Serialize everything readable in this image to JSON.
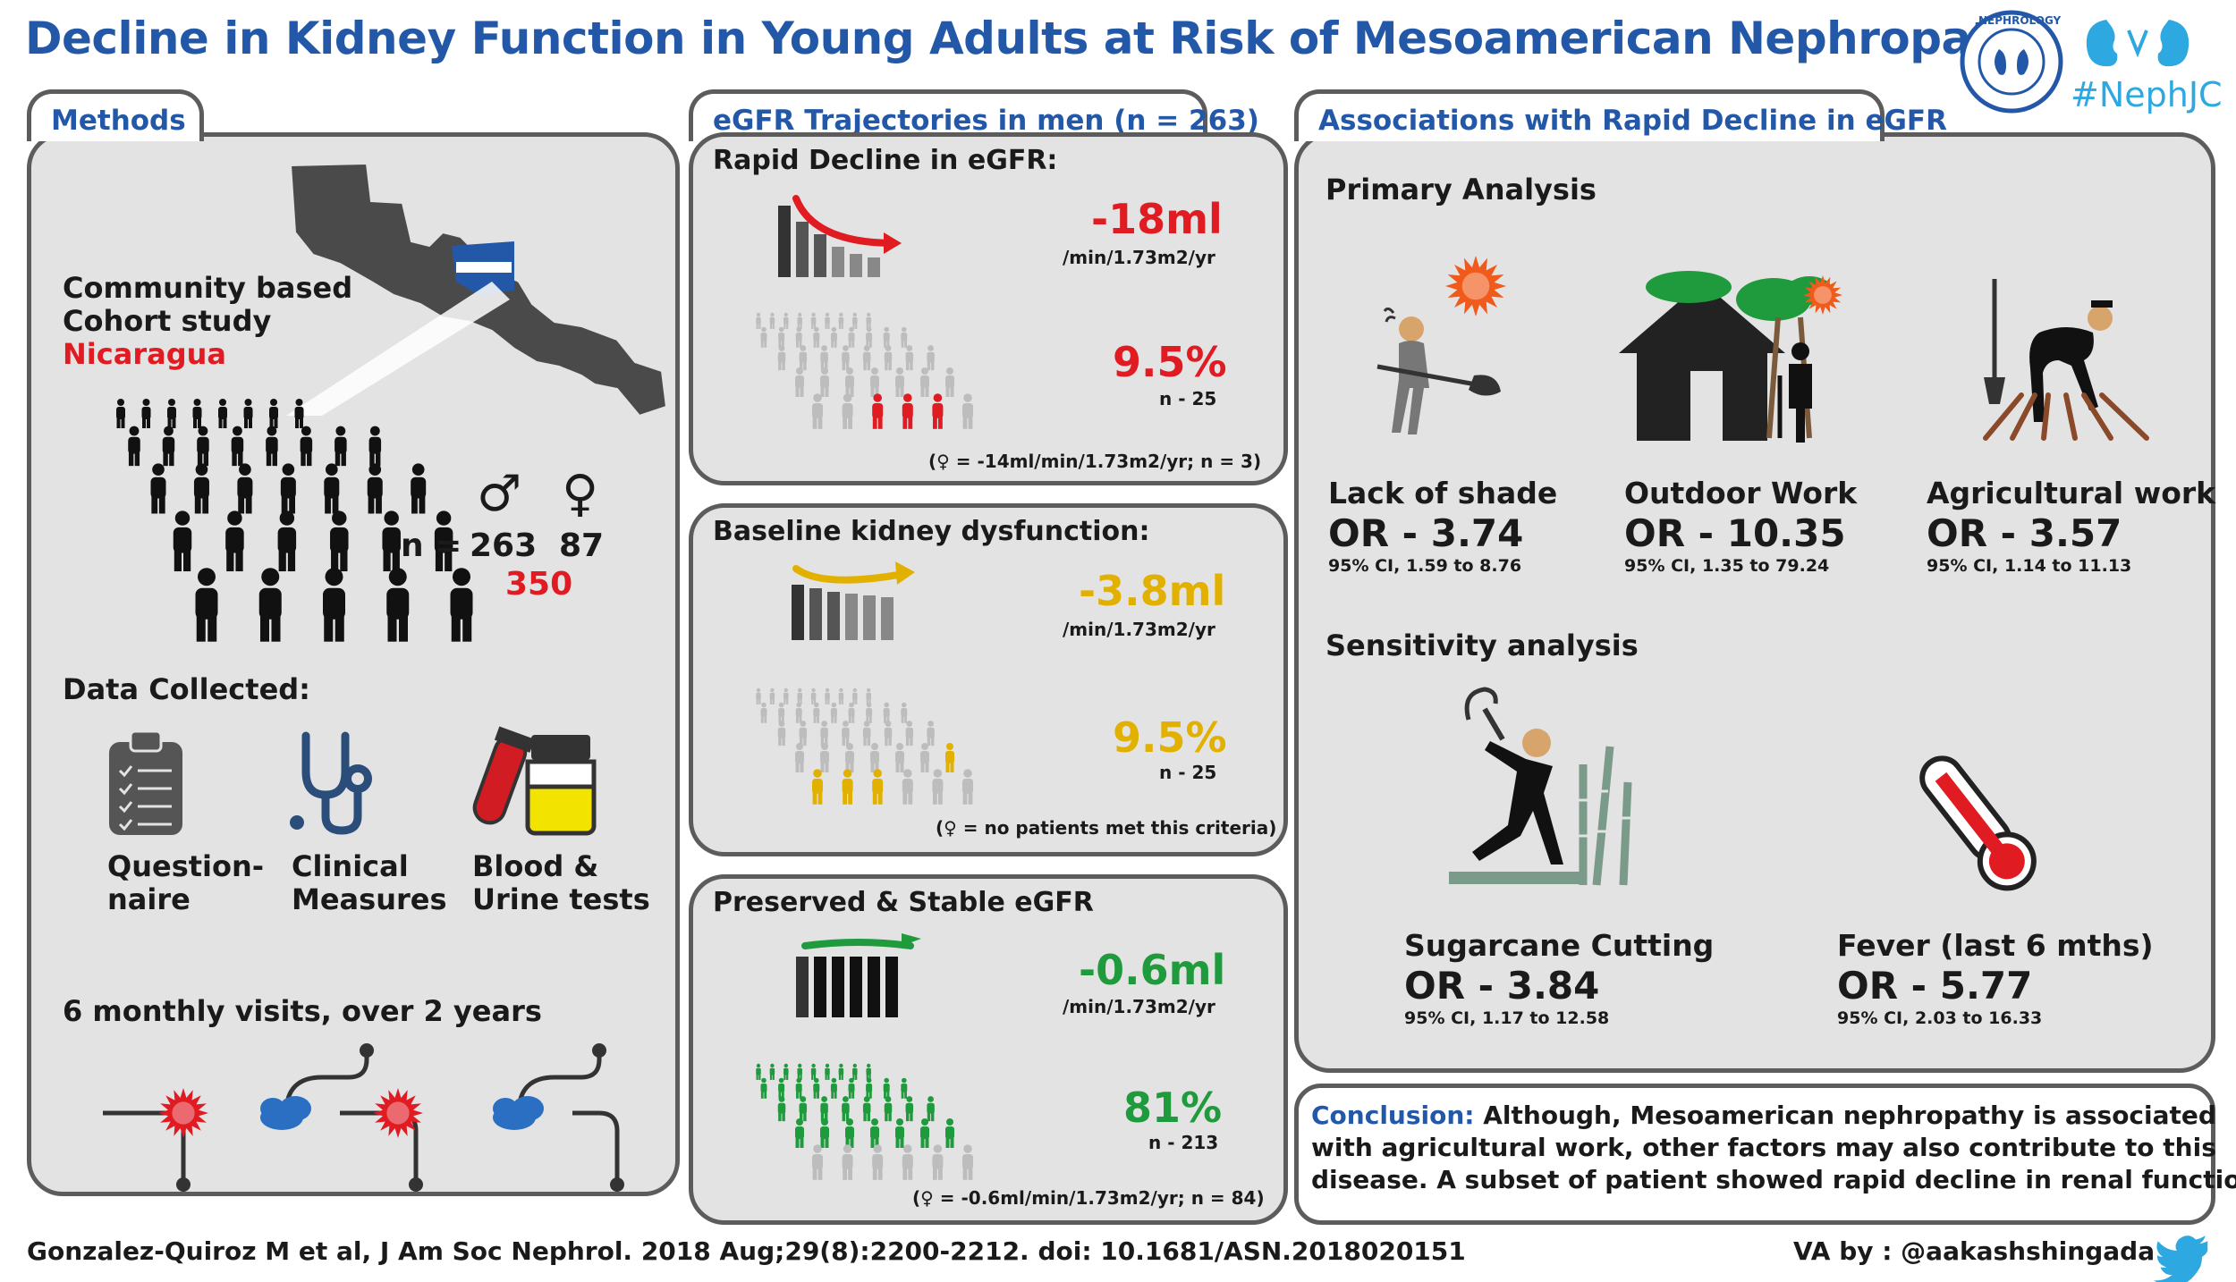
{
  "title": "Decline in Kidney Function in Young Adults at Risk of Mesoamerican Nephropathy",
  "logo": {
    "text": "NEPHROLOGY",
    "hashtag": "#NephJC"
  },
  "methods": {
    "tab": "Methods",
    "study_line1": "Community based",
    "study_line2": "Cohort study",
    "country": "Nicaragua",
    "male_symbol": "♂",
    "female_symbol": "♀",
    "n_label": "n =",
    "n_male": "263",
    "n_female": "87",
    "n_total": "350",
    "data_collected": "Data Collected:",
    "items": [
      {
        "line1": "Question-",
        "line2": "naire"
      },
      {
        "line1": "Clinical",
        "line2": "Measures"
      },
      {
        "line1": "Blood &",
        "line2": "Urine tests"
      }
    ],
    "visits": "6 monthly visits, over 2 years"
  },
  "trajectories": {
    "tab": "eGFR Trajectories in men (n = 263)",
    "rapid": {
      "heading": "Rapid Decline in eGFR:",
      "rate": "-18ml",
      "unit": "/min/1.73m2/yr",
      "pct": "9.5%",
      "n": "n - 25",
      "note": "(♀ = -14ml/min/1.73m2/yr; n = 3)",
      "color": "#e01b22"
    },
    "baseline": {
      "heading": "Baseline kidney dysfunction:",
      "rate": "-3.8ml",
      "unit": "/min/1.73m2/yr",
      "pct": "9.5%",
      "n": "n - 25",
      "note": "(♀ = no patients met this criteria)",
      "color": "#e2b100"
    },
    "stable": {
      "heading": "Preserved & Stable eGFR",
      "rate": "-0.6ml",
      "unit": "/min/1.73m2/yr",
      "pct": "81%",
      "n": "n - 213",
      "note": "(♀ = -0.6ml/min/1.73m2/yr; n = 84)",
      "color": "#1f9a3c"
    }
  },
  "associations": {
    "tab": "Associations with Rapid Decline in eGFR",
    "primary": "Primary Analysis",
    "primary_items": [
      {
        "label": "Lack of shade",
        "or": "OR - 3.74",
        "ci": "95% CI, 1.59 to 8.76"
      },
      {
        "label": "Outdoor Work",
        "or": "OR - 10.35",
        "ci": "95% CI, 1.35 to 79.24"
      },
      {
        "label": "Agricultural work",
        "or": "OR - 3.57",
        "ci": "95% CI, 1.14 to 11.13"
      }
    ],
    "sensitivity": "Sensitivity analysis",
    "sensitivity_items": [
      {
        "label": "Sugarcane Cutting",
        "or": "OR - 3.84",
        "ci": "95% CI, 1.17 to 12.58"
      },
      {
        "label": "Fever (last 6 mths)",
        "or": "OR - 5.77",
        "ci": "95% CI, 2.03 to 16.33"
      }
    ]
  },
  "conclusion": {
    "label": "Conclusion:",
    "line1": "Although, Mesoamerican nephropathy is associated",
    "line2": "with agricultural work, other factors may also contribute to this",
    "line3": "disease. A subset of patient showed rapid decline in renal function."
  },
  "footer": {
    "citation": "Gonzalez-Quiroz M et al, J Am Soc Nephrol. 2018 Aug;29(8):2200-2212. doi: 10.1681/ASN.2018020151",
    "va": "VA by : @aakashshingada"
  }
}
